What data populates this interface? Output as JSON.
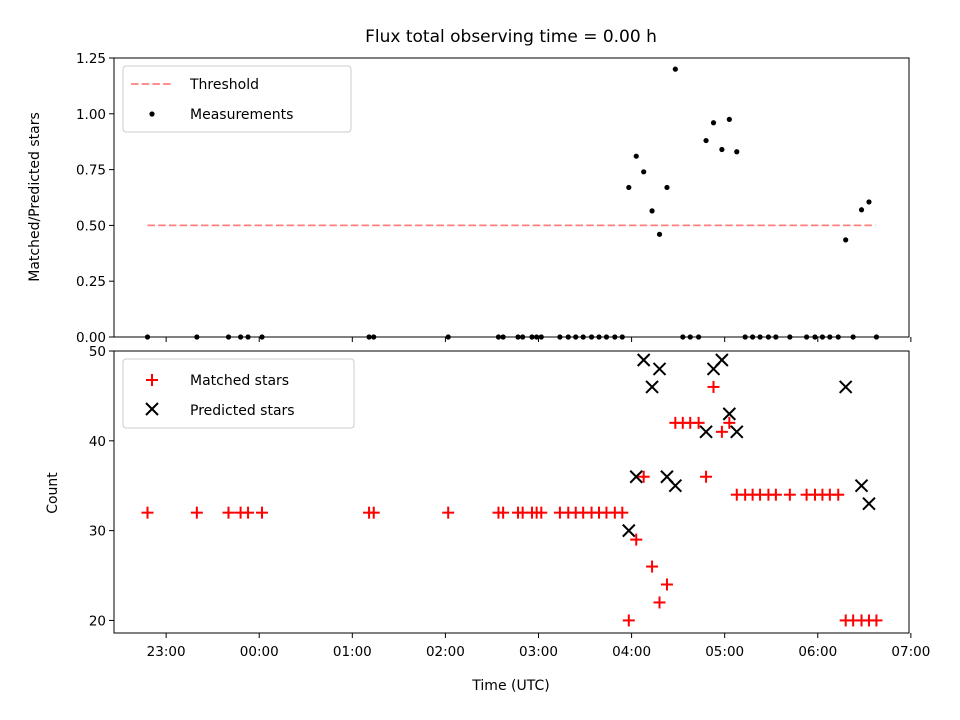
{
  "chart_data": [
    {
      "type": "scatter",
      "title": "Flux total observing time = 0.00 h",
      "xlabel": "",
      "ylabel": "Matched/Predicted stars",
      "ylim": [
        0,
        1.25
      ],
      "yticks": [
        "0.00",
        "0.25",
        "0.50",
        "0.75",
        "1.00",
        "1.25"
      ],
      "legend": {
        "placement": "top-left"
      },
      "threshold": {
        "name": "Threshold",
        "value": 0.5,
        "x_start": -1.2,
        "x_end": 6.62,
        "color": "#ff7f7f"
      },
      "series": [
        {
          "name": "Measurements",
          "marker": "dot",
          "color": "#000000",
          "x": [
            -1.2,
            -0.67,
            -0.33,
            -0.2,
            -0.12,
            0.03,
            1.18,
            1.23,
            2.03,
            2.57,
            2.62,
            2.78,
            2.83,
            2.93,
            2.98,
            3.03,
            3.23,
            3.32,
            3.4,
            3.48,
            3.57,
            3.65,
            3.73,
            3.82,
            3.9,
            3.97,
            4.05,
            4.13,
            4.22,
            4.3,
            4.38,
            4.47,
            4.55,
            4.63,
            4.72,
            4.8,
            4.88,
            4.97,
            5.05,
            5.13,
            5.22,
            5.3,
            5.38,
            5.47,
            5.55,
            5.7,
            5.88,
            5.97,
            6.05,
            6.13,
            6.22,
            6.3,
            6.38,
            6.47,
            6.55,
            6.63
          ],
          "y": [
            0,
            0,
            0,
            0,
            0,
            0,
            0,
            0,
            0,
            0,
            0,
            0,
            0,
            0,
            0,
            0,
            0,
            0,
            0,
            0,
            0,
            0,
            0,
            0,
            0,
            0.67,
            0.81,
            0.74,
            0.565,
            0.46,
            0.67,
            1.2,
            0,
            0,
            0,
            0.88,
            0.96,
            0.84,
            0.975,
            0.83,
            0,
            0,
            0,
            0,
            0,
            0,
            0,
            0,
            0,
            0,
            0,
            0.435,
            0,
            0.57,
            0.605,
            0
          ]
        }
      ]
    },
    {
      "type": "scatter",
      "title": "",
      "xlabel": "Time (UTC)",
      "ylabel": "Count",
      "ylim": [
        18.6,
        50
      ],
      "yticks": [
        "20",
        "30",
        "40",
        "50"
      ],
      "xlim": [
        -1.56,
        6.98
      ],
      "xticks": [
        "23:00",
        "00:00",
        "01:00",
        "02:00",
        "03:00",
        "04:00",
        "05:00",
        "06:00",
        "07:00"
      ],
      "xtick_values": [
        -1,
        0,
        1,
        2,
        3,
        4,
        5,
        6,
        7
      ],
      "legend": {
        "placement": "top-left"
      },
      "series": [
        {
          "name": "Matched stars",
          "marker": "plus",
          "color": "#ff0000",
          "x": [
            -1.2,
            -0.67,
            -0.33,
            -0.2,
            -0.12,
            0.03,
            1.18,
            1.23,
            2.03,
            2.57,
            2.62,
            2.78,
            2.83,
            2.93,
            2.98,
            3.03,
            3.23,
            3.32,
            3.4,
            3.48,
            3.57,
            3.65,
            3.73,
            3.82,
            3.9,
            3.97,
            4.05,
            4.13,
            4.22,
            4.3,
            4.38,
            4.47,
            4.55,
            4.63,
            4.72,
            4.8,
            4.88,
            4.97,
            5.05,
            5.13,
            5.22,
            5.3,
            5.38,
            5.47,
            5.55,
            5.7,
            5.88,
            5.97,
            6.05,
            6.13,
            6.22,
            6.3,
            6.38,
            6.47,
            6.55,
            6.63
          ],
          "y": [
            32,
            32,
            32,
            32,
            32,
            32,
            32,
            32,
            32,
            32,
            32,
            32,
            32,
            32,
            32,
            32,
            32,
            32,
            32,
            32,
            32,
            32,
            32,
            32,
            32,
            20,
            29,
            36,
            26,
            22,
            24,
            42,
            42,
            42,
            42,
            36,
            46,
            41,
            42,
            34,
            34,
            34,
            34,
            34,
            34,
            34,
            34,
            34,
            34,
            34,
            34,
            20,
            20,
            20,
            20,
            20
          ]
        },
        {
          "name": "Predicted stars",
          "marker": "x",
          "color": "#000000",
          "x": [
            3.97,
            4.05,
            4.13,
            4.22,
            4.3,
            4.38,
            4.47,
            4.8,
            4.88,
            4.97,
            5.05,
            5.13,
            6.3,
            6.47,
            6.55
          ],
          "y": [
            30,
            36,
            49,
            46,
            48,
            36,
            35,
            41,
            48,
            49,
            43,
            41,
            46,
            35,
            33
          ]
        }
      ]
    }
  ]
}
